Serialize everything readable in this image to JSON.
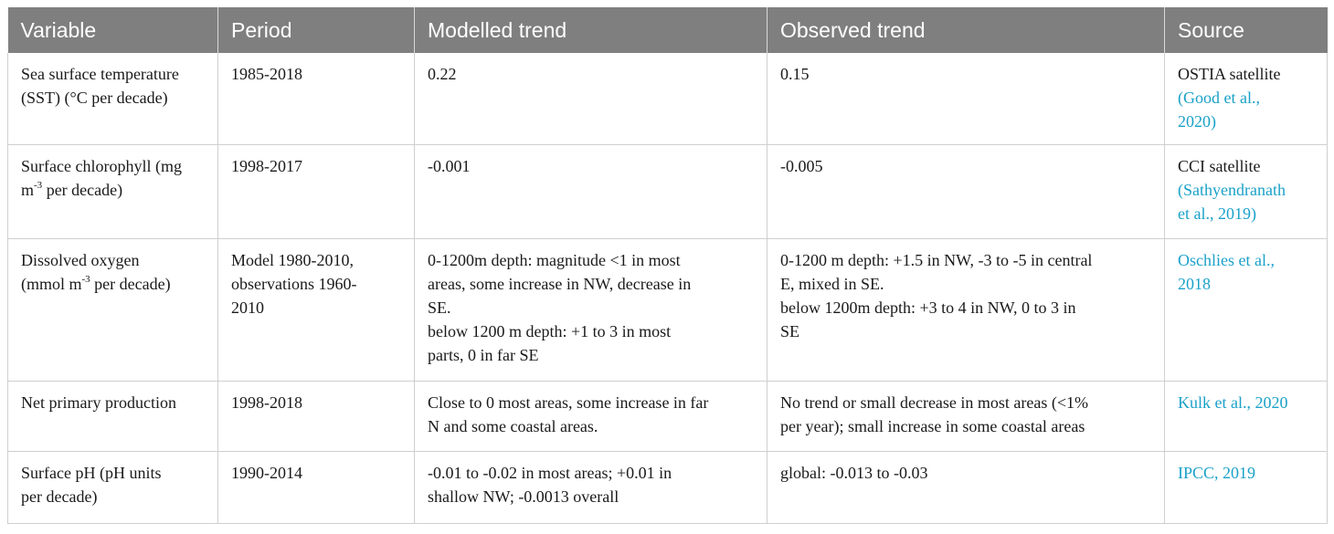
{
  "headers": [
    "Variable",
    "Period",
    "Modelled trend",
    "Observed trend",
    "Source"
  ],
  "rows": [
    {
      "variable": [
        "Sea surface temperature",
        "(SST) (°C per decade)"
      ],
      "period": [
        "1985-2018"
      ],
      "modelled": [
        "0.22"
      ],
      "observed": [
        "0.15"
      ],
      "source_plain": "OSTIA satellite",
      "source_link": [
        "(Good et al.,",
        "2020)"
      ]
    },
    {
      "variable_parts": [
        "Surface chlorophyll (mg",
        "m",
        "-3",
        " per decade)"
      ],
      "period": [
        "1998-2017"
      ],
      "modelled": [
        "-0.001"
      ],
      "observed": [
        "-0.005"
      ],
      "source_plain": "CCI satellite",
      "source_link": [
        "(Sathyendranath",
        "et al., 2019)"
      ]
    },
    {
      "variable_parts": [
        "Dissolved oxygen",
        "(mmol m",
        "-3",
        " per decade)"
      ],
      "period": [
        "Model 1980-2010,",
        "observations 1960-",
        "2010"
      ],
      "modelled": [
        "0-1200m depth: magnitude <1 in most",
        "areas, some increase in NW, decrease in",
        "SE.",
        "below 1200 m depth: +1 to 3 in most",
        "parts, 0 in far SE"
      ],
      "observed": [
        "0-1200 m depth: +1.5 in NW, -3 to -5 in central",
        "E, mixed in SE.",
        "below 1200m depth: +3 to 4 in NW, 0 to 3 in",
        "SE"
      ],
      "source_link": [
        "Oschlies et al.,",
        "2018"
      ]
    },
    {
      "variable": [
        "Net primary production"
      ],
      "period": [
        "1998-2018"
      ],
      "modelled": [
        "Close to 0 most areas, some increase in far",
        "N and some coastal areas."
      ],
      "observed": [
        "No trend or small decrease in most areas (<1%",
        "per year); small increase in some coastal areas"
      ],
      "source_link": [
        "Kulk et al., 2020"
      ]
    },
    {
      "variable": [
        "Surface pH (pH units",
        "per decade)"
      ],
      "period": [
        "1990-2014"
      ],
      "modelled": [
        "-0.01 to -0.02 in most areas; +0.01 in",
        "shallow NW; -0.0013 overall"
      ],
      "observed": [
        "global: -0.013 to -0.03"
      ],
      "source_link": [
        "IPCC, 2019"
      ]
    }
  ]
}
